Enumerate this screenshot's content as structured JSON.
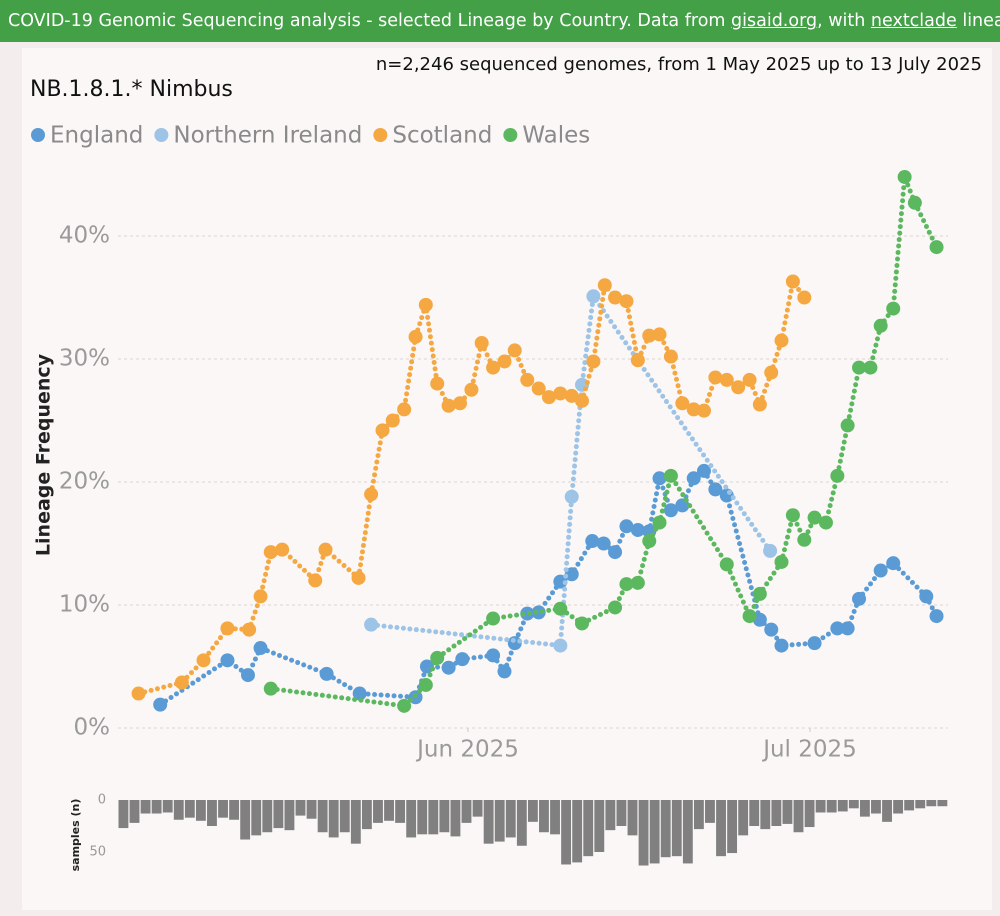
{
  "header": {
    "text": "COVID-19 Genomic Sequencing analysis - selected Lineage by Country. Data from ",
    "link1": "gisaid.org",
    "mid": ", with ",
    "link2": "nextclade",
    "end": " lineages"
  },
  "chart_data": [
    {
      "type": "line",
      "title": "NB.1.8.1.* Nimbus",
      "subtitle": "n=2,246 sequenced genomes, from 1 May 2025 up to 13 July 2025",
      "y_label": "Lineage Frequency",
      "xlim": [
        0,
        73.5
      ],
      "xticks": [
        {
          "value": 31,
          "label": "Jun 2025"
        },
        {
          "value": 61,
          "label": "Jul 2025"
        }
      ],
      "ylim": [
        0,
        46
      ],
      "yticks": [
        {
          "value": 0,
          "label": "0%"
        },
        {
          "value": 10,
          "label": "10%"
        },
        {
          "value": 20,
          "label": "20%"
        },
        {
          "value": 30,
          "label": "30%"
        },
        {
          "value": 40,
          "label": "40%"
        }
      ],
      "grid": true,
      "legend": "top-left",
      "series": [
        {
          "name": "England",
          "color": "#5b9bd5",
          "x": [
            4.0,
            9.9,
            11.7,
            12.8,
            18.6,
            21.5,
            26.4,
            27.4,
            29.3,
            30.5,
            33.2,
            34.2,
            35.1,
            36.2,
            37.2,
            39.1,
            40.1,
            41.9,
            42.9,
            43.9,
            44.9,
            45.9,
            46.9,
            47.8,
            48.8,
            49.8,
            50.8,
            51.7,
            52.7,
            53.7,
            56.6,
            57.6,
            58.5,
            61.4,
            63.4,
            64.3,
            65.3,
            67.2,
            68.3,
            71.2,
            72.1
          ],
          "values": [
            1.9,
            5.5,
            4.3,
            6.5,
            4.4,
            2.8,
            2.5,
            5.0,
            4.9,
            5.6,
            5.9,
            4.6,
            6.9,
            9.3,
            9.4,
            11.9,
            12.5,
            15.2,
            15.0,
            14.3,
            16.4,
            16.1,
            16.0,
            20.3,
            17.7,
            18.1,
            20.3,
            20.9,
            19.4,
            18.9,
            8.8,
            8.0,
            6.7,
            6.9,
            8.1,
            8.1,
            10.5,
            12.8,
            13.4,
            10.7,
            9.1
          ]
        },
        {
          "name": "Northern Ireland",
          "color": "#9dc3e6",
          "x": [
            22.5,
            39.1,
            40.1,
            41.0,
            42.0,
            57.5
          ],
          "values": [
            8.4,
            6.7,
            18.8,
            27.9,
            35.1,
            14.4
          ]
        },
        {
          "name": "Scotland",
          "color": "#f5a742",
          "x": [
            2.1,
            5.9,
            7.8,
            9.9,
            11.8,
            12.8,
            13.7,
            14.7,
            17.6,
            18.5,
            21.4,
            22.5,
            23.5,
            24.4,
            25.4,
            26.4,
            27.3,
            28.3,
            29.3,
            30.3,
            31.3,
            32.2,
            33.2,
            34.2,
            35.1,
            36.2,
            37.2,
            38.1,
            39.1,
            40.1,
            41.0,
            42.0,
            43.0,
            43.9,
            44.9,
            45.9,
            46.9,
            47.8,
            48.8,
            49.8,
            50.8,
            51.7,
            52.7,
            53.7,
            54.7,
            55.7,
            56.6,
            57.6,
            58.5,
            59.5,
            60.5
          ],
          "values": [
            2.8,
            3.7,
            5.5,
            8.1,
            8.0,
            10.7,
            14.3,
            14.5,
            12.0,
            14.5,
            12.2,
            19.0,
            24.2,
            25.0,
            25.9,
            31.8,
            34.4,
            28.0,
            26.2,
            26.4,
            27.5,
            31.3,
            29.3,
            29.8,
            30.7,
            28.3,
            27.6,
            26.9,
            27.2,
            27.0,
            26.6,
            29.8,
            36.0,
            35.0,
            34.7,
            29.9,
            31.9,
            32.0,
            30.2,
            26.4,
            25.9,
            25.8,
            28.5,
            28.3,
            27.7,
            28.3,
            26.3,
            28.9,
            31.5,
            36.3,
            35.0
          ]
        },
        {
          "name": "Wales",
          "color": "#5cb85f",
          "x": [
            13.7,
            25.4,
            27.3,
            28.3,
            33.2,
            39.1,
            41.0,
            43.9,
            44.9,
            45.9,
            46.9,
            47.8,
            48.8,
            53.7,
            55.7,
            56.6,
            58.5,
            59.5,
            60.5,
            61.4,
            62.4,
            63.4,
            64.3,
            65.3,
            66.3,
            67.2,
            68.3,
            69.3,
            70.2,
            72.1
          ],
          "values": [
            3.2,
            1.8,
            3.5,
            5.7,
            8.9,
            9.7,
            8.5,
            9.8,
            11.7,
            11.8,
            15.2,
            16.7,
            20.5,
            13.3,
            9.1,
            10.9,
            13.5,
            17.3,
            15.3,
            17.1,
            16.7,
            20.5,
            24.6,
            29.3,
            29.3,
            32.7,
            34.1,
            44.8,
            42.7,
            39.1
          ]
        }
      ]
    },
    {
      "type": "bar",
      "y_label": "samples (n)",
      "color": "#808080",
      "inverted": true,
      "ylim": [
        0,
        70
      ],
      "yticks": [
        0,
        50
      ],
      "categories": [
        null,
        null,
        null,
        null,
        null,
        null,
        null,
        null,
        null,
        null,
        null,
        null,
        null,
        null,
        null,
        null,
        null,
        null,
        null,
        null,
        null,
        null,
        null,
        null,
        null,
        null,
        null,
        null,
        null,
        null,
        null,
        null,
        null,
        null,
        null,
        null,
        null,
        null,
        null,
        null,
        null,
        null,
        null,
        null,
        null,
        null,
        null,
        null,
        null,
        null,
        null,
        null,
        null,
        null,
        null,
        null,
        null,
        null,
        null,
        null,
        null,
        null,
        null,
        null,
        null,
        null,
        null,
        null,
        null,
        null,
        null,
        null,
        null,
        null,
        null
      ],
      "values": [
        27,
        22,
        13,
        13,
        12,
        19,
        17,
        20,
        25,
        17,
        19,
        38,
        34,
        31,
        27,
        29,
        15,
        18,
        31,
        36,
        31,
        42,
        28,
        22,
        20,
        22,
        36,
        33,
        33,
        31,
        35,
        22,
        16,
        42,
        40,
        36,
        44,
        21,
        31,
        33,
        62,
        60,
        54,
        50,
        29,
        25,
        34,
        63,
        61,
        55,
        54,
        61,
        28,
        22,
        54,
        51,
        34,
        25,
        28,
        25,
        23,
        31,
        26,
        12,
        12,
        11,
        8,
        16,
        13,
        21,
        13,
        10,
        8,
        6,
        6
      ]
    }
  ]
}
